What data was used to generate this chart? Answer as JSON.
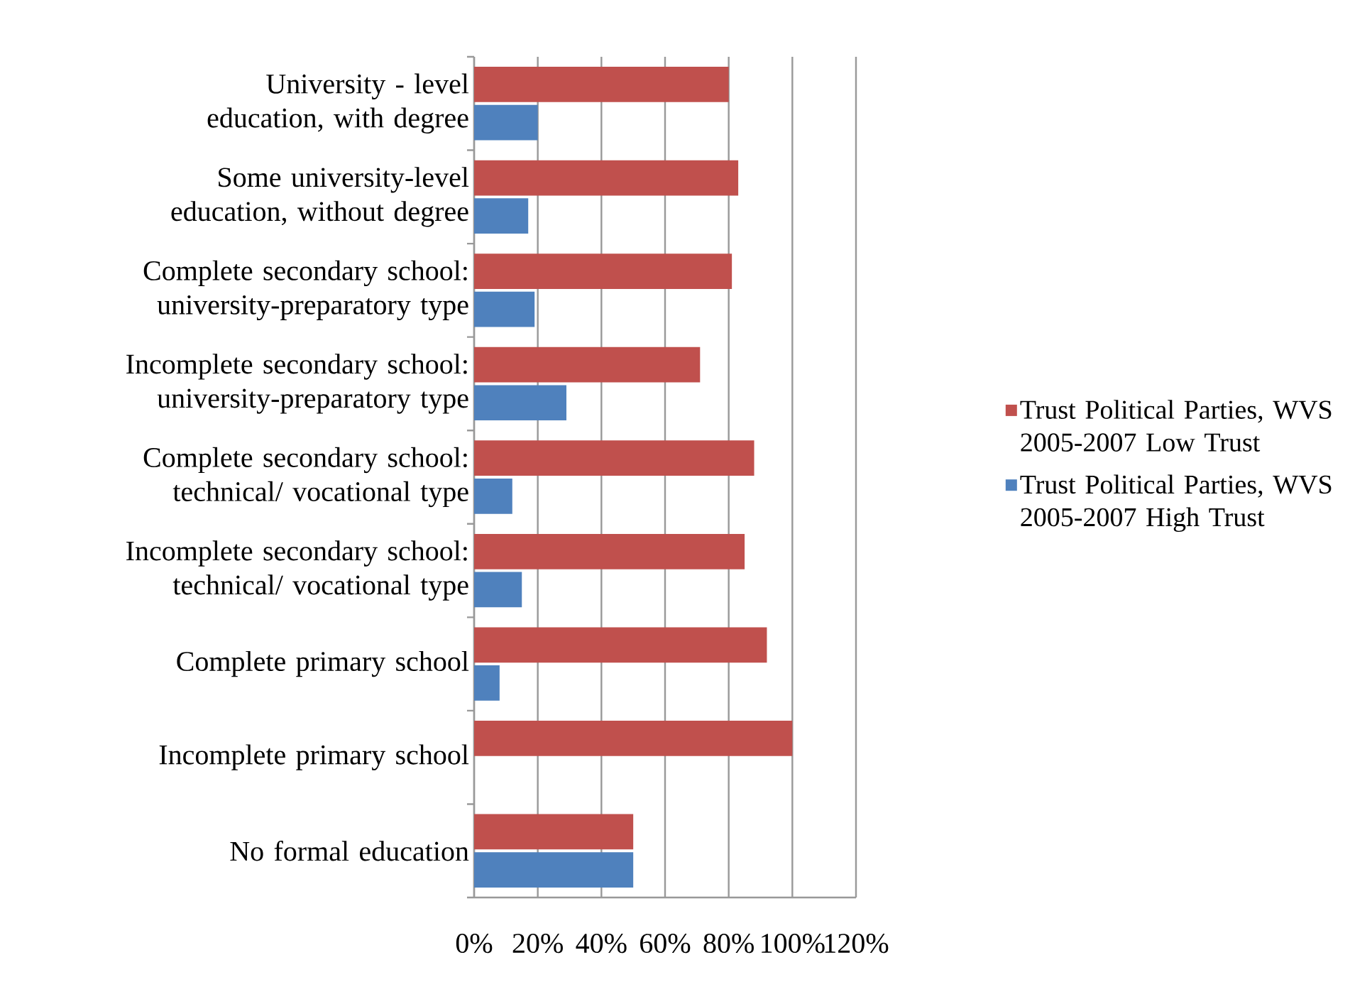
{
  "chart_data": {
    "type": "bar",
    "orientation": "horizontal",
    "categories": [
      "University - level education, with degree",
      "Some university-level education, without degree",
      "Complete secondary school: university-preparatory type",
      "Incomplete secondary school: university-preparatory type",
      "Complete secondary school: technical/ vocational type",
      "Incomplete secondary school: technical/ vocational type",
      "Complete primary school",
      "Incomplete primary school",
      "No formal education"
    ],
    "series": [
      {
        "name": "Trust Political Parties, WVS 2005-2007 Low Trust",
        "color": "#c0504d",
        "values": [
          80,
          83,
          81,
          71,
          88,
          85,
          92,
          100,
          50
        ]
      },
      {
        "name": "Trust Political Parties, WVS 2005-2007 High Trust",
        "color": "#4f81bd",
        "values": [
          20,
          17,
          19,
          29,
          12,
          15,
          8,
          null,
          50
        ]
      }
    ],
    "xlim": [
      0,
      120
    ],
    "xticks": [
      {
        "value": 0,
        "label": "0%"
      },
      {
        "value": 20,
        "label": "20%"
      },
      {
        "value": 40,
        "label": "40%"
      },
      {
        "value": 60,
        "label": "60%"
      },
      {
        "value": 80,
        "label": "80%"
      },
      {
        "value": 100,
        "label": "100%"
      },
      {
        "value": 120,
        "label": "120%"
      }
    ],
    "grid": "x",
    "legend": "right"
  }
}
